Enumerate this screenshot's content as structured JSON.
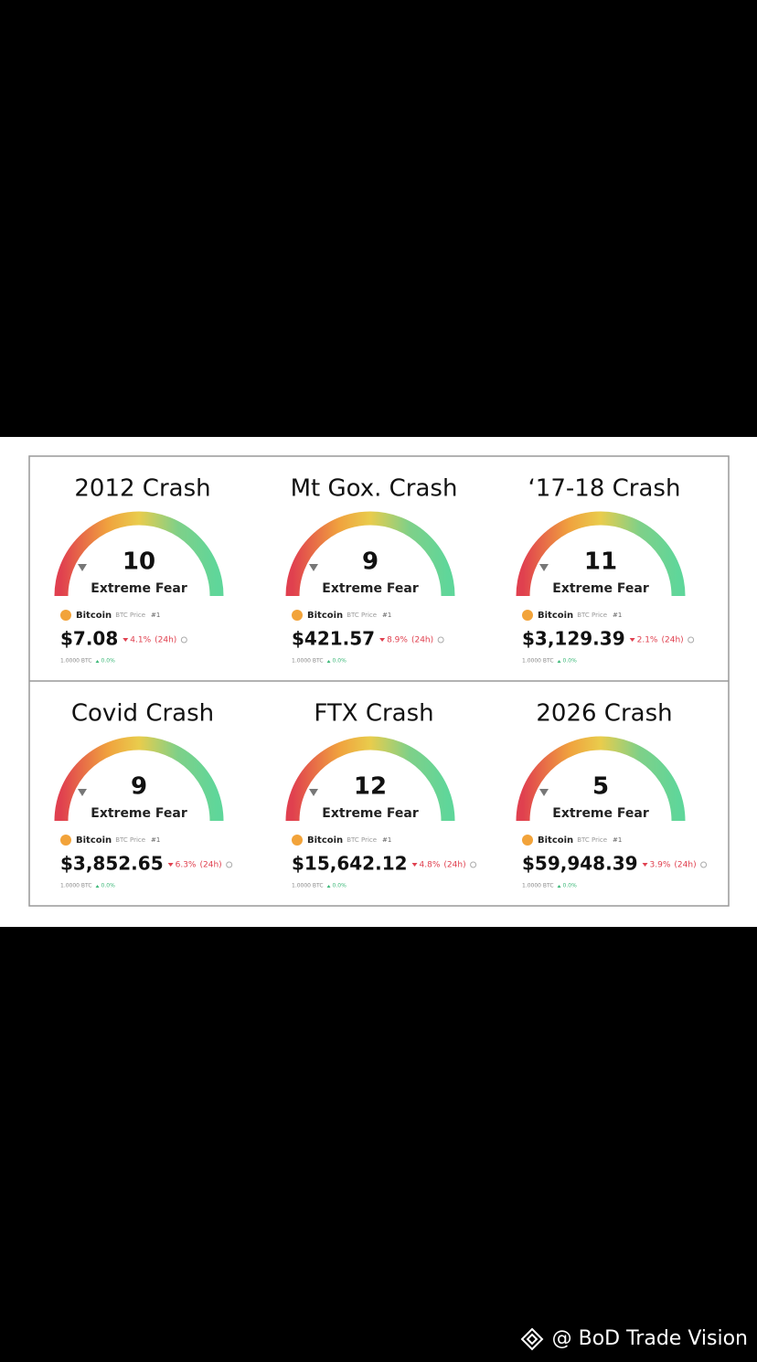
{
  "panels": [
    {
      "title": "2012 Crash",
      "index": 10,
      "classification": "Extreme Fear",
      "coin": "Bitcoin",
      "pair": "BTC Price",
      "rank": "#1",
      "price": "$7.08",
      "change": "4.1%",
      "period": "(24h)",
      "holding": "1.0000 BTC",
      "holding_change": "0.0%"
    },
    {
      "title": "Mt Gox. Crash",
      "index": 9,
      "classification": "Extreme Fear",
      "coin": "Bitcoin",
      "pair": "BTC Price",
      "rank": "#1",
      "price": "$421.57",
      "change": "8.9%",
      "period": "(24h)",
      "holding": "1.0000 BTC",
      "holding_change": "0.0%"
    },
    {
      "title": "‘17-18 Crash",
      "index": 11,
      "classification": "Extreme Fear",
      "coin": "Bitcoin",
      "pair": "BTC Price",
      "rank": "#1",
      "price": "$3,129.39",
      "change": "2.1%",
      "period": "(24h)",
      "holding": "1.0000 BTC",
      "holding_change": "0.0%"
    },
    {
      "title": "Covid Crash",
      "index": 9,
      "classification": "Extreme Fear",
      "coin": "Bitcoin",
      "pair": "BTC Price",
      "rank": "#1",
      "price": "$3,852.65",
      "change": "6.3%",
      "period": "(24h)",
      "holding": "1.0000 BTC",
      "holding_change": "0.0%"
    },
    {
      "title": "FTX Crash",
      "index": 12,
      "classification": "Extreme Fear",
      "coin": "Bitcoin",
      "pair": "BTC Price",
      "rank": "#1",
      "price": "$15,642.12",
      "change": "4.8%",
      "period": "(24h)",
      "holding": "1.0000 BTC",
      "holding_change": "0.0%"
    },
    {
      "title": "2026 Crash",
      "index": 5,
      "classification": "Extreme Fear",
      "coin": "Bitcoin",
      "pair": "BTC Price",
      "rank": "#1",
      "price": "$59,948.39",
      "change": "3.9%",
      "period": "(24h)",
      "holding": "1.0000 BTC",
      "holding_change": "0.0%"
    }
  ],
  "watermark": "@ BoD Trade Vision"
}
